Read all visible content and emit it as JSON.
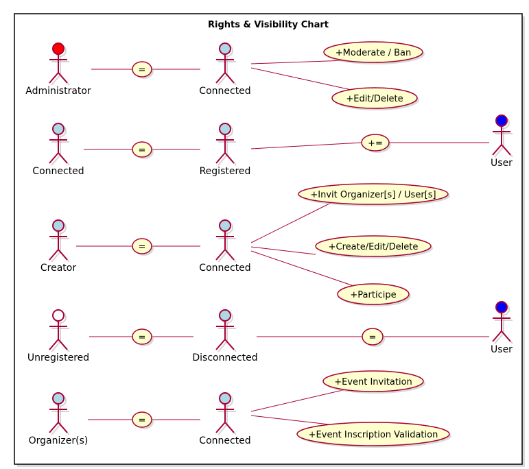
{
  "title": "Rights & Visibility Chart",
  "colors": {
    "edge": "#A80036",
    "usecase_fill": "#FEFECE",
    "admin_head": "#FF0000",
    "default_head": "#ADD8E6",
    "user_head": "#0000FF",
    "unregistered_head": "#FFFFFF"
  },
  "rows": [
    {
      "left_actor": {
        "label": "Administrator",
        "head": "admin_head"
      },
      "link": "=",
      "right_actor": {
        "label": "Connected",
        "head": "default_head"
      },
      "usecases": [
        "+Moderate / Ban",
        "+Edit/Delete"
      ]
    },
    {
      "left_actor": {
        "label": "Connected",
        "head": "default_head"
      },
      "link": "=",
      "right_actor": {
        "label": "Registered",
        "head": "default_head"
      },
      "via": "+=",
      "target_actor": {
        "label": "User",
        "head": "user_head"
      }
    },
    {
      "left_actor": {
        "label": "Creator",
        "head": "default_head"
      },
      "link": "=",
      "right_actor": {
        "label": "Connected",
        "head": "default_head"
      },
      "usecases": [
        "+Invit Organizer[s] / User[s]",
        "+Create/Edit/Delete",
        "+Participe"
      ]
    },
    {
      "left_actor": {
        "label": "Unregistered",
        "head": "unregistered_head"
      },
      "link": "=",
      "right_actor": {
        "label": "Disconnected",
        "head": "default_head"
      },
      "via": "=",
      "target_actor": {
        "label": "User",
        "head": "user_head"
      }
    },
    {
      "left_actor": {
        "label": "Organizer(s)",
        "head": "default_head"
      },
      "link": "=",
      "right_actor": {
        "label": "Connected",
        "head": "default_head"
      },
      "usecases": [
        "+Event Invitation",
        "+Event Inscription Validation"
      ]
    }
  ]
}
